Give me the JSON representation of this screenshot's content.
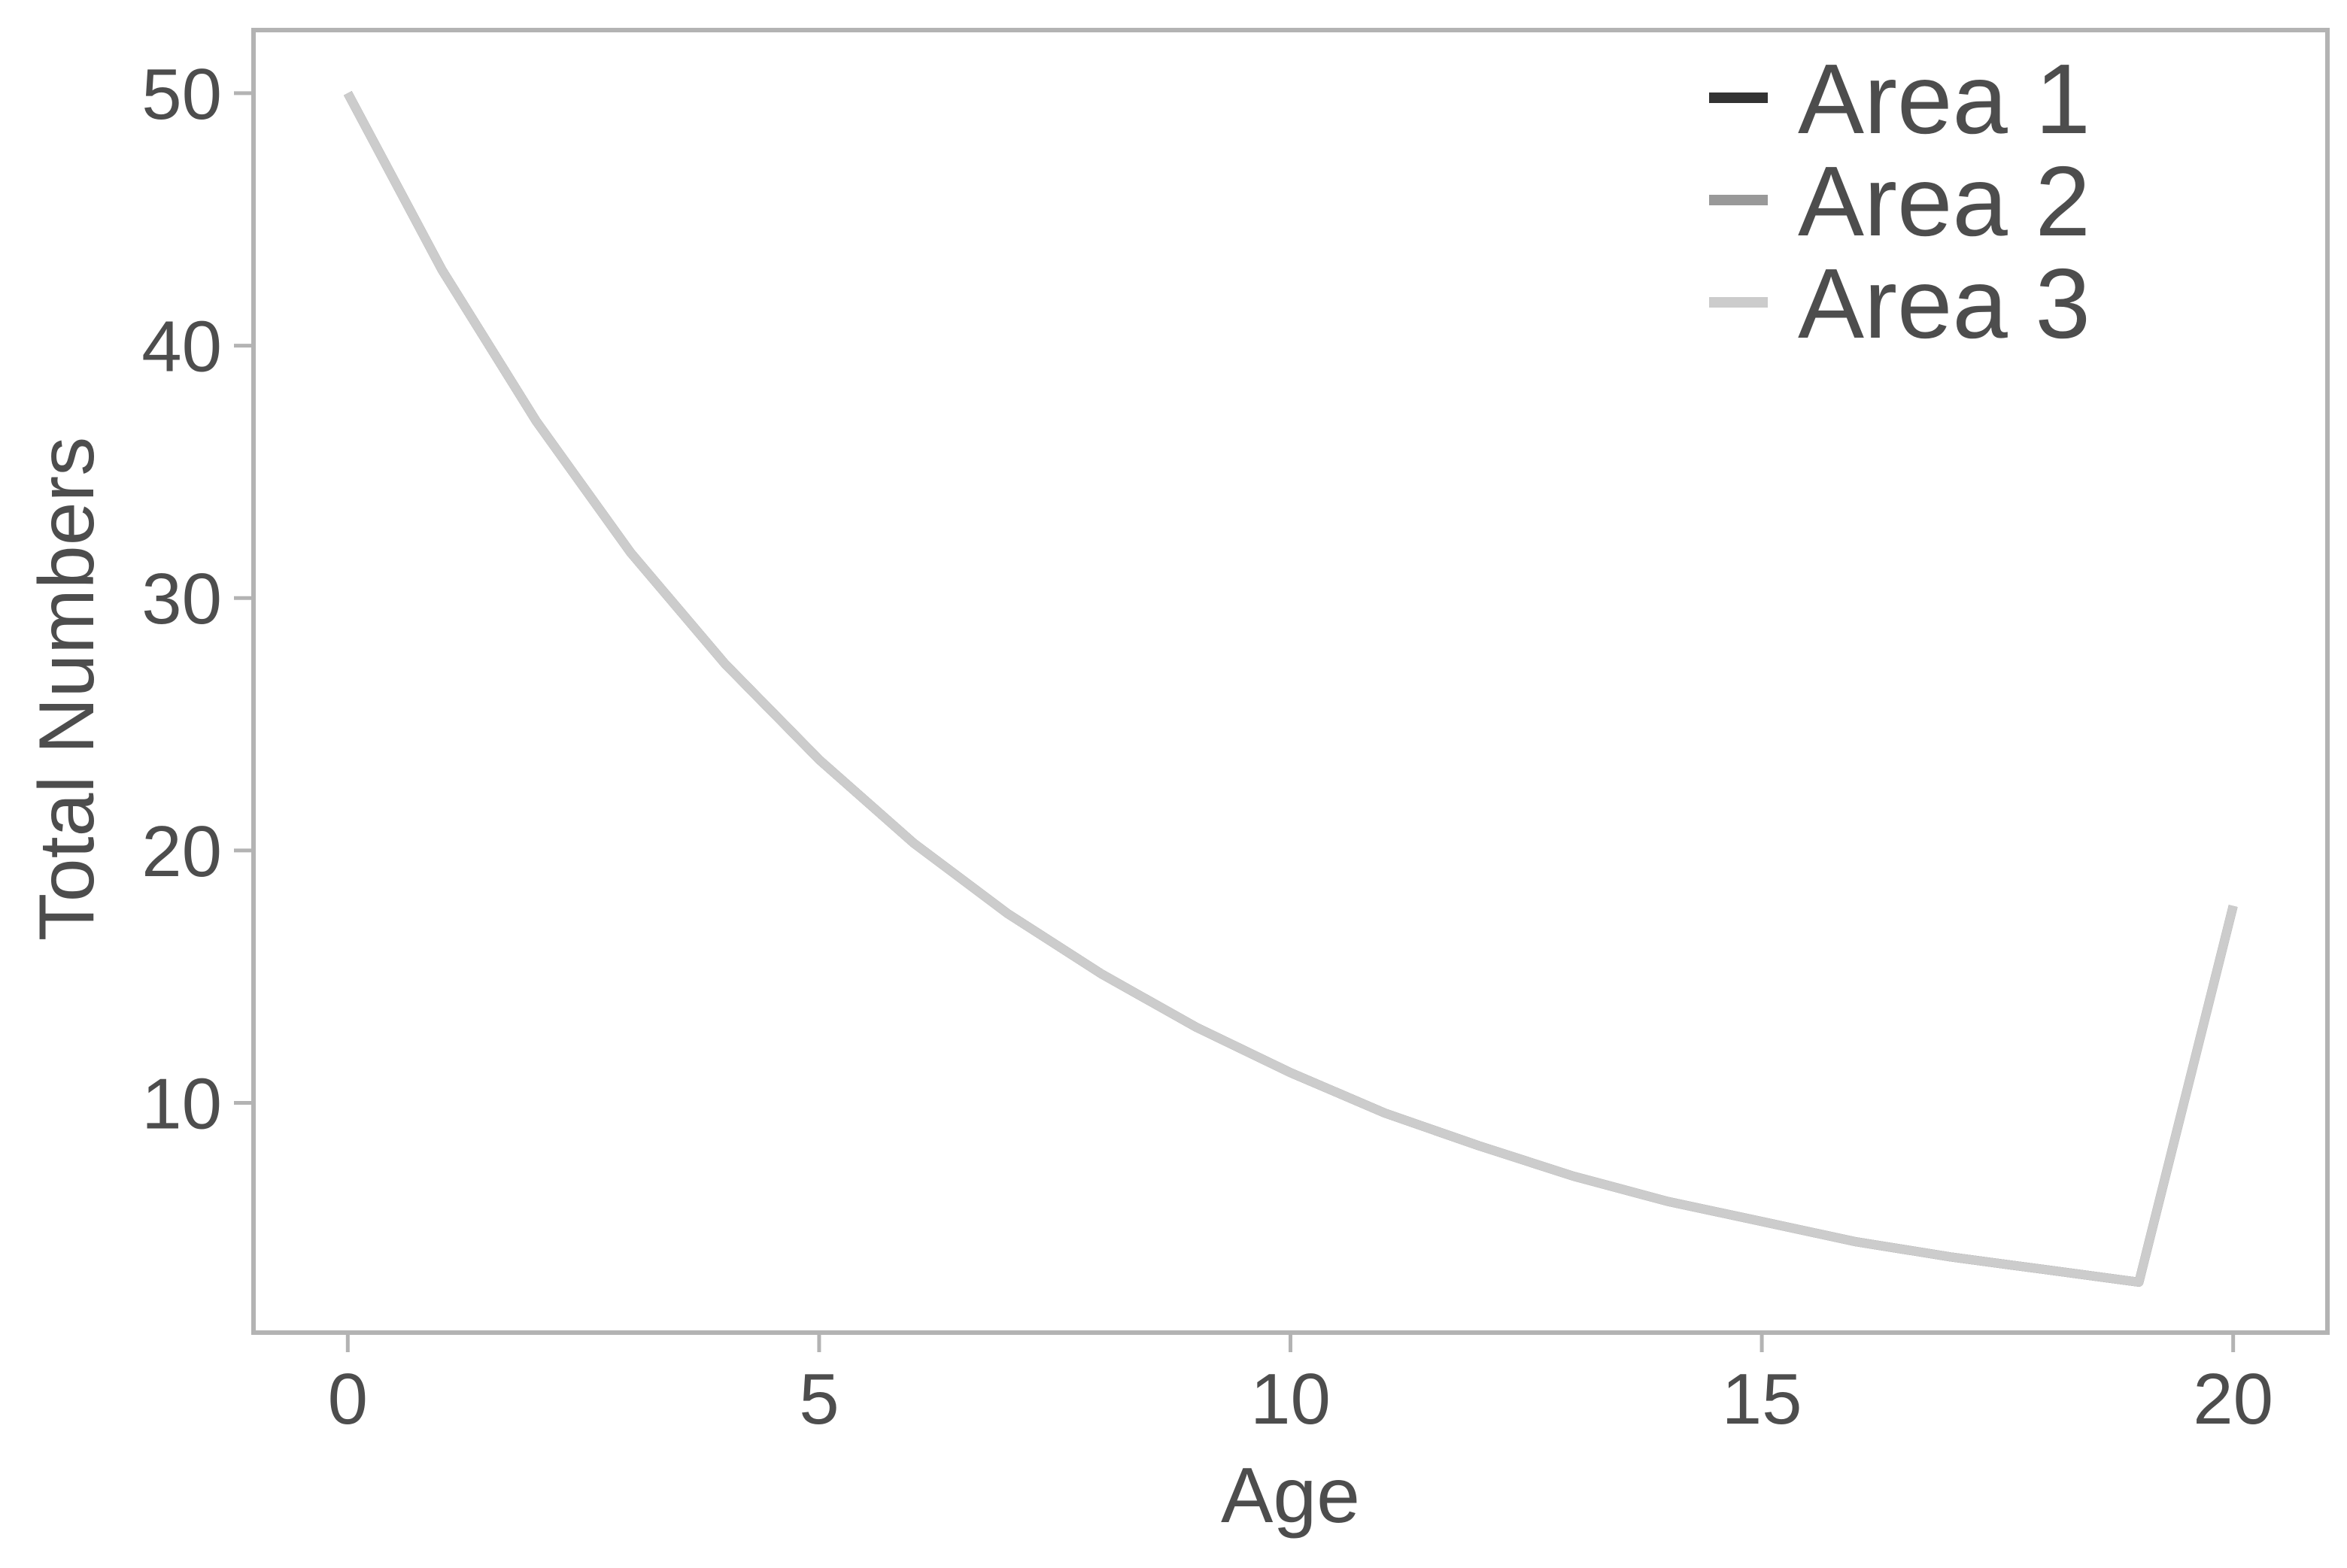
{
  "chart_data": {
    "type": "line",
    "title": "",
    "xlabel": "Age",
    "ylabel": "Total Numbers",
    "xlim": [
      -1,
      21
    ],
    "ylim": [
      0.9,
      52.5
    ],
    "xticks": [
      0,
      5,
      10,
      15,
      20
    ],
    "yticks": [
      10,
      20,
      30,
      40,
      50
    ],
    "grid": false,
    "legend_position": "top-right",
    "x": [
      0,
      1,
      2,
      3,
      4,
      5,
      6,
      7,
      8,
      9,
      10,
      11,
      12,
      13,
      14,
      15,
      16,
      17,
      18,
      19,
      20
    ],
    "series": [
      {
        "name": "Area 1",
        "color": "#333333",
        "values": [
          50,
          43,
          37,
          31.8,
          27.4,
          23.6,
          20.3,
          17.5,
          15.1,
          13.0,
          11.2,
          9.6,
          8.3,
          7.1,
          6.1,
          5.3,
          4.5,
          3.9,
          3.4,
          2.9,
          17.8
        ]
      },
      {
        "name": "Area 2",
        "color": "#999999",
        "values": [
          50,
          43,
          37,
          31.8,
          27.4,
          23.6,
          20.3,
          17.5,
          15.1,
          13.0,
          11.2,
          9.6,
          8.3,
          7.1,
          6.1,
          5.3,
          4.5,
          3.9,
          3.4,
          2.9,
          17.8
        ]
      },
      {
        "name": "Area 3",
        "color": "#cccccc",
        "values": [
          50,
          43,
          37,
          31.8,
          27.4,
          23.6,
          20.3,
          17.5,
          15.1,
          13.0,
          11.2,
          9.6,
          8.3,
          7.1,
          6.1,
          5.3,
          4.5,
          3.9,
          3.4,
          2.9,
          17.8
        ]
      }
    ]
  }
}
